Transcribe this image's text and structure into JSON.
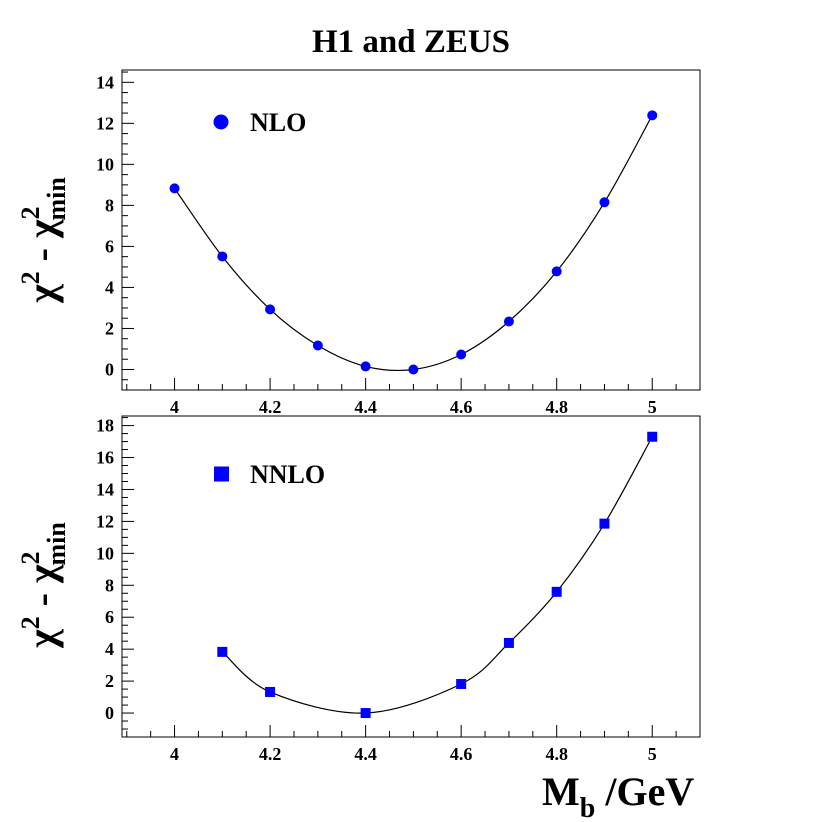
{
  "chart_data": [
    {
      "type": "scatter",
      "title": "H1 and ZEUS",
      "xlabel": "M_b /GeV",
      "ylabel": "χ² - χ²_min",
      "xlim": [
        3.89,
        5.1
      ],
      "ylim": [
        -1.0,
        14.6
      ],
      "xticks": [
        "4",
        "4.2",
        "4.4",
        "4.6",
        "4.8",
        "5"
      ],
      "yticks": [
        "0",
        "2",
        "4",
        "6",
        "8",
        "10",
        "12",
        "14"
      ],
      "legend": {
        "label": "NLO",
        "marker": "circle",
        "placement": "top-left"
      },
      "color": "#0000ff",
      "x": [
        4.0,
        4.1,
        4.2,
        4.3,
        4.4,
        4.5,
        4.6,
        4.7,
        4.8,
        4.9,
        5.0
      ],
      "y": [
        8.83,
        5.51,
        2.93,
        1.17,
        0.15,
        0.0,
        0.73,
        2.34,
        4.78,
        8.15,
        12.39
      ]
    },
    {
      "type": "scatter",
      "xlabel": "M_b /GeV",
      "ylabel": "χ² - χ²_min",
      "xlim": [
        3.89,
        5.1
      ],
      "ylim": [
        -1.5,
        18.6
      ],
      "xticks": [
        "4",
        "4.2",
        "4.4",
        "4.6",
        "4.8",
        "5"
      ],
      "yticks": [
        "0",
        "2",
        "4",
        "6",
        "8",
        "10",
        "12",
        "14",
        "16",
        "18"
      ],
      "legend": {
        "label": "NNLO",
        "marker": "square",
        "placement": "top-left"
      },
      "color": "#0000ff",
      "x": [
        4.1,
        4.2,
        4.4,
        4.6,
        4.7,
        4.8,
        4.9,
        5.0
      ],
      "y": [
        3.83,
        1.32,
        0.0,
        1.82,
        4.39,
        7.59,
        11.86,
        17.3
      ]
    }
  ],
  "ylabel_main": "χ",
  "ylabel_sup": "2",
  "ylabel_sep": " - ",
  "ylabel_sub": "min",
  "xlabel_main": "M",
  "xlabel_sub": "b",
  "xlabel_unit": " /GeV"
}
